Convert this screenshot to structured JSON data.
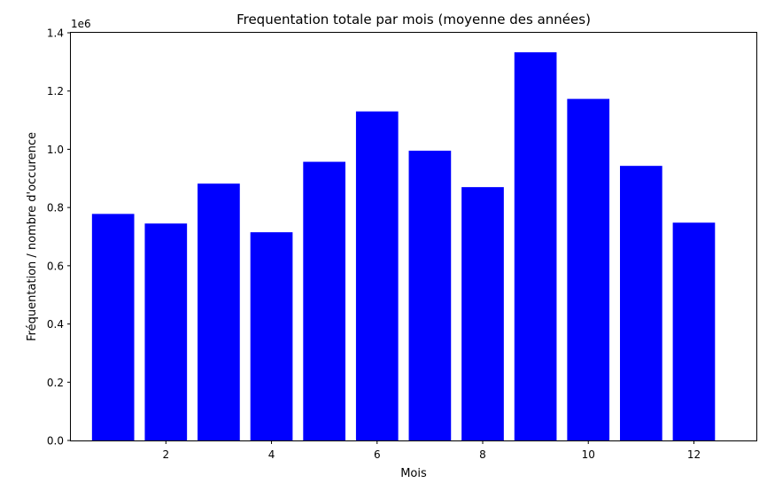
{
  "chart_data": {
    "type": "bar",
    "title": "Frequentation totale par mois (moyenne des années)",
    "xlabel": "Mois",
    "ylabel": "Fréquentation / nombre d'occurence",
    "offset_text": "1e6",
    "categories": [
      1,
      2,
      3,
      4,
      5,
      6,
      7,
      8,
      9,
      10,
      11,
      12
    ],
    "values": [
      778000,
      745000,
      882000,
      715000,
      957000,
      1130000,
      995000,
      870000,
      1333000,
      1173000,
      943000,
      748000
    ],
    "bar_color": "#0000ff",
    "xlim": [
      0.2,
      13.2
    ],
    "ylim": [
      0,
      1400000
    ],
    "x_ticks": [
      2,
      4,
      6,
      8,
      10,
      12
    ],
    "x_tick_labels": [
      "2",
      "4",
      "6",
      "8",
      "10",
      "12"
    ],
    "y_ticks": [
      0,
      200000,
      400000,
      600000,
      800000,
      1000000,
      1200000,
      1400000
    ],
    "y_tick_labels": [
      "0.0",
      "0.2",
      "0.4",
      "0.6",
      "0.8",
      "1.0",
      "1.2",
      "1.4"
    ],
    "grid": false,
    "legend": "none"
  }
}
